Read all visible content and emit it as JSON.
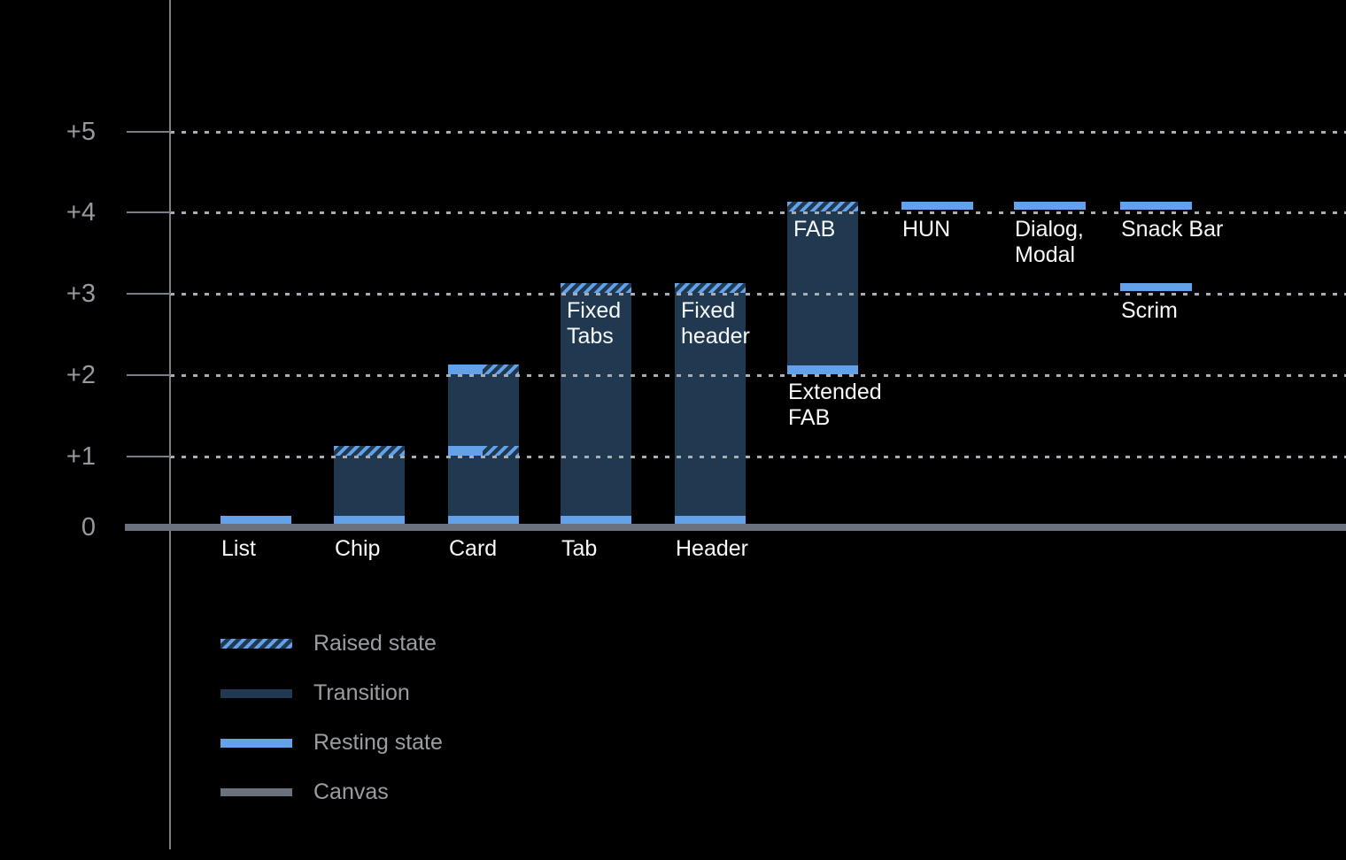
{
  "colors": {
    "background": "#000000",
    "resting": "#63A1E8",
    "transition": "#213950",
    "canvas": "#6B727D",
    "gridline": "#A9AEB5",
    "axis": "#7A7F87",
    "axis_label": "#96999E",
    "component_label": "#F7F8F8",
    "legend_label": "#9A9EA3"
  },
  "legend": [
    {
      "id": "raised",
      "label": "Raised state"
    },
    {
      "id": "transition",
      "label": "Transition"
    },
    {
      "id": "resting",
      "label": "Resting state"
    },
    {
      "id": "canvas",
      "label": "Canvas"
    }
  ],
  "chart_data": {
    "type": "bar",
    "title": "",
    "xlabel": "",
    "ylabel": "",
    "ylim": [
      0,
      5
    ],
    "grid": "dotted horizontal lines at +1 through +5; solid canvas baseline at 0",
    "legend_position": "bottom-left",
    "y_axis": {
      "ticks": [
        {
          "label": "+5",
          "level": 5
        },
        {
          "label": "+4",
          "level": 4
        },
        {
          "label": "+3",
          "level": 3
        },
        {
          "label": "+2",
          "level": 2
        },
        {
          "label": "+1",
          "level": 1
        },
        {
          "label": "0",
          "level": 0
        }
      ]
    },
    "legend_entries": [
      "Raised state",
      "Transition",
      "Resting state",
      "Canvas"
    ],
    "components": [
      {
        "id": "list",
        "label": "List",
        "type": "resting-band",
        "level": 0
      },
      {
        "id": "chip",
        "label": "Chip",
        "type": "column",
        "resting": 0,
        "raised": 1,
        "top_style": "hatched"
      },
      {
        "id": "card",
        "label": "Card",
        "type": "column",
        "resting": 0,
        "raised": 2,
        "top_style": "split",
        "mid_levels": [
          1
        ]
      },
      {
        "id": "tab",
        "label": "Tab",
        "inner_label": "Fixed\nTabs",
        "type": "column",
        "resting": 0,
        "raised": 3,
        "top_style": "hatched"
      },
      {
        "id": "header",
        "label": "Header",
        "inner_label": "Fixed\nheader",
        "type": "column",
        "resting": 0,
        "raised": 3,
        "top_style": "hatched"
      },
      {
        "id": "fab",
        "label": "Extended\nFAB",
        "inner_label": "FAB",
        "type": "column",
        "resting": 2,
        "raised": 4,
        "top_style": "hatched"
      },
      {
        "id": "hun",
        "label": "HUN",
        "type": "resting-band",
        "level": 4
      },
      {
        "id": "dialog_modal",
        "label": "Dialog,\nModal",
        "type": "resting-band",
        "level": 4
      },
      {
        "id": "snack_bar",
        "label": "Snack Bar",
        "type": "resting-band",
        "level": 4
      },
      {
        "id": "scrim",
        "label": "Scrim",
        "type": "resting-band",
        "level": 3
      }
    ]
  }
}
